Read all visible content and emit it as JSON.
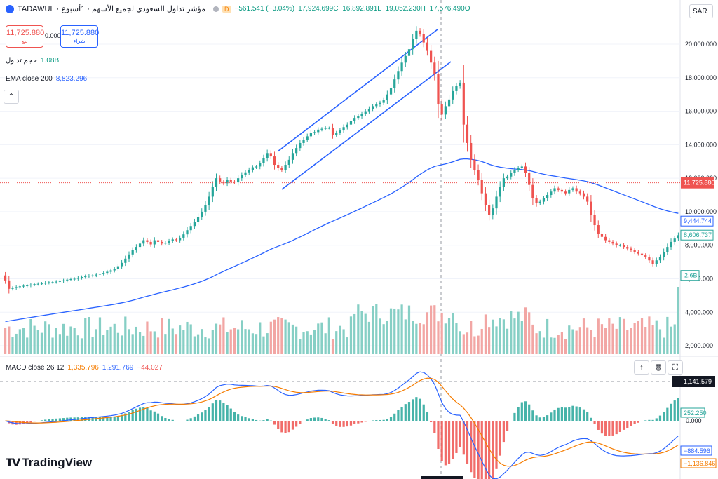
{
  "header": {
    "title": "مؤشر تداول السعودي لجميع الأسهم · 1أسبوع · TADAWUL",
    "d_badge": "D",
    "change": "−561.541 (−3.04%)",
    "ohlc": [
      "17,924.699C",
      "16,892.891L",
      "19,052.230H",
      "17,576.490O"
    ],
    "currency": "SAR"
  },
  "trade_boxes": {
    "sell_value": "11,725.880",
    "sell_label": "بيع",
    "spread": "0.000",
    "buy_value": "11,725.880",
    "buy_label": "شراء"
  },
  "volume_legend": {
    "label": "حجم تداول",
    "value": "1.08B"
  },
  "ema_legend": {
    "label": "EMA close 200",
    "value": "8,823.296"
  },
  "macd_legend": {
    "label": "MACD close 26 12",
    "v1": "1,335.796",
    "v2": "1,291.769",
    "v3": "−44.027"
  },
  "macd_buttons": [
    "↑",
    "🗑",
    "⛶"
  ],
  "logo": "TradingView",
  "colors": {
    "up": "#26a69a",
    "down": "#ef5350",
    "ema": "#2962ff",
    "macd": "#2962ff",
    "signal": "#f57c00",
    "vol_up": "#86cfc5",
    "vol_down": "#f2a6a4"
  },
  "chart_data": [
    {
      "type": "candlestick",
      "name": "TADAWUL",
      "y_axis_ticks": [
        "20,000.000",
        "18,000.000",
        "16,000.000",
        "14,000.000",
        "12,000.000",
        "10,000.000",
        "8,000.000",
        "6,000.000",
        "4,000.000",
        "2,000.000"
      ],
      "ylim": [
        1500,
        21800
      ],
      "price_labels": {
        "last": "11,725.880",
        "ema": "9,444.744",
        "level": "8,606.737",
        "volume": "2.6B"
      },
      "close": [
        5900,
        5400,
        5450,
        5500,
        5550,
        5580,
        5600,
        5650,
        5680,
        5700,
        5720,
        5760,
        5790,
        5800,
        5830,
        5860,
        5900,
        5950,
        5980,
        6000,
        6050,
        6100,
        6150,
        6180,
        6200,
        6250,
        6300,
        6350,
        6420,
        6500,
        6600,
        6750,
        6950,
        7200,
        7450,
        7700,
        7900,
        8100,
        8300,
        8200,
        8050,
        8300,
        8200,
        8100,
        8150,
        8250,
        8350,
        8300,
        8450,
        8650,
        8900,
        9150,
        9400,
        9700,
        10000,
        10400,
        10900,
        11500,
        12000,
        11800,
        11700,
        11900,
        11800,
        11750,
        12000,
        12200,
        12350,
        12500,
        12650,
        12700,
        12900,
        13200,
        13500,
        13300,
        12800,
        12600,
        12500,
        12800,
        13100,
        13500,
        13800,
        14100,
        14300,
        14500,
        14700,
        14750,
        14900,
        14950,
        15000,
        15000,
        14600,
        14700,
        14850,
        15050,
        15200,
        15400,
        15600,
        15700,
        15850,
        16000,
        16150,
        16300,
        16400,
        16500,
        16650,
        17000,
        17400,
        17900,
        18400,
        18900,
        19300,
        19700,
        20300,
        20800,
        20600,
        20100,
        19600,
        18900,
        18200,
        16400,
        15800,
        16300,
        16700,
        17200,
        17500,
        17700,
        15200,
        14100,
        13100,
        12500,
        11900,
        11100,
        10400,
        9800,
        10200,
        10900,
        11500,
        12000,
        12100,
        12300,
        12500,
        12600,
        12700,
        12300,
        11600,
        10800,
        10500,
        10600,
        10800,
        11000,
        11200,
        11400,
        11300,
        11200,
        11100,
        11300,
        11400,
        11200,
        11100,
        10900,
        10600,
        9800,
        9200,
        8700,
        8500,
        8300,
        8200,
        8100,
        8000,
        8000,
        7900,
        7800,
        7700,
        7600,
        7500,
        7400,
        7300,
        7100,
        6900,
        7100,
        7300,
        7600,
        7900,
        8200,
        8400,
        8600
      ]
    },
    {
      "type": "line",
      "name": "MACD",
      "y_axis_labels": {
        "zero": "0.000",
        "hist": "252.250",
        "macd": "1,141.579",
        "low1": "−884.596",
        "low2": "−1,136.846"
      }
    }
  ]
}
